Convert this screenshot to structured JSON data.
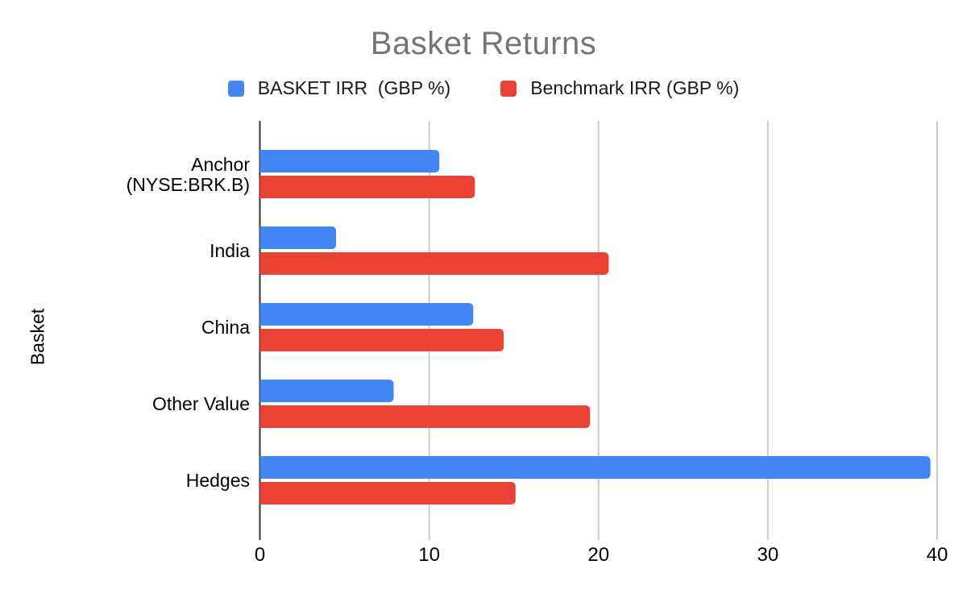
{
  "title": "Basket Returns",
  "y_axis_title": "Basket",
  "legend": {
    "items": [
      {
        "label": "BASKET IRR  (GBP %)",
        "color": "#4285F4"
      },
      {
        "label": "Benchmark IRR (GBP %)",
        "color": "#EA4335"
      }
    ]
  },
  "chart_data": {
    "type": "bar",
    "orientation": "horizontal",
    "title": "Basket Returns",
    "xlabel": "",
    "ylabel": "Basket",
    "categories": [
      "Anchor (NYSE:BRK.B)",
      "India",
      "China",
      "Other Value",
      "Hedges"
    ],
    "category_display_lines": [
      [
        "Anchor",
        "(NYSE:BRK.B)"
      ],
      [
        "India"
      ],
      [
        "China"
      ],
      [
        "Other Value"
      ],
      [
        "Hedges"
      ]
    ],
    "series": [
      {
        "name": "BASKET IRR  (GBP %)",
        "color": "#4285F4",
        "values": [
          10.6,
          4.5,
          12.6,
          7.9,
          39.6
        ]
      },
      {
        "name": "Benchmark IRR (GBP %)",
        "color": "#EA4335",
        "values": [
          12.7,
          20.6,
          14.4,
          19.5,
          15.1
        ]
      }
    ],
    "x_ticks": [
      0,
      10,
      20,
      30,
      40
    ],
    "xlim": [
      0,
      40
    ],
    "grid": true,
    "legend_position": "top",
    "colors": {
      "gridline": "#cccccc",
      "axis_line": "#333333",
      "tick_label": "#000000",
      "category_label": "#000000",
      "title": "#757575"
    }
  }
}
